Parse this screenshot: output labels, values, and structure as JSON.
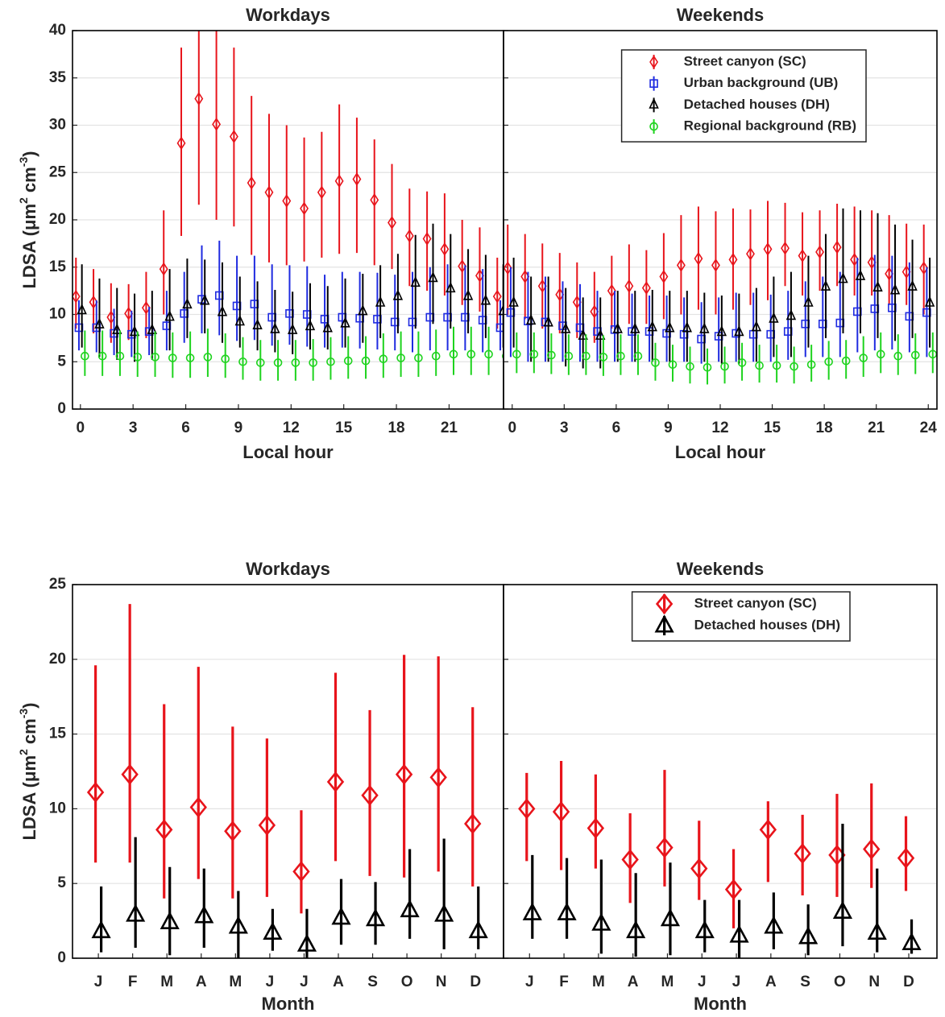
{
  "chart_data": [
    {
      "type": "errorbar",
      "title": "Workdays",
      "x_label": "Local hour",
      "y_label": [
        "LDSA (μm",
        "2",
        " cm",
        "-3",
        ")"
      ],
      "x": [
        0,
        1,
        2,
        3,
        4,
        5,
        6,
        7,
        8,
        9,
        10,
        11,
        12,
        13,
        14,
        15,
        16,
        17,
        18,
        19,
        20,
        21,
        22,
        23,
        24
      ],
      "xlim": [
        -0.45,
        24.1
      ],
      "xticks": [
        0,
        3,
        6,
        9,
        12,
        15,
        18,
        21
      ],
      "ylim": [
        0,
        40
      ],
      "yticks": [
        0,
        5,
        10,
        15,
        20,
        25,
        30,
        35,
        40
      ],
      "grid": true,
      "marker_size": "small",
      "series": [
        {
          "color": "#e8141b",
          "marker": "diamond",
          "values": [
            11.9,
            11.3,
            9.7,
            10.1,
            10.7,
            14.8,
            28.1,
            32.8,
            30.1,
            28.8,
            23.9,
            22.9,
            22.0,
            21.2,
            22.9,
            24.1,
            24.3,
            22.1,
            19.7,
            18.3,
            18.0,
            16.9,
            15.1,
            14.1,
            11.9
          ],
          "lower": [
            8.5,
            8,
            7,
            7.3,
            7.5,
            10,
            18.3,
            21.6,
            20,
            19.3,
            16.3,
            15.5,
            15.2,
            15.6,
            16,
            16.4,
            16.5,
            15.2,
            14.8,
            13,
            12.5,
            12,
            11,
            10.3,
            8.5
          ],
          "upper": [
            16,
            14.8,
            13.3,
            13.2,
            14.5,
            21,
            38.2,
            42,
            41,
            38.2,
            33.1,
            31.2,
            30,
            28.7,
            29.3,
            32.2,
            30.8,
            28.5,
            25.9,
            23.3,
            23,
            22.8,
            20,
            19.2,
            16
          ]
        },
        {
          "color": "#1f2be0",
          "marker": "square",
          "values": [
            8.6,
            8.6,
            8.0,
            7.9,
            8.2,
            8.8,
            10.1,
            11.6,
            12.0,
            10.9,
            11.1,
            9.7,
            10.1,
            10.0,
            9.5,
            9.7,
            9.6,
            9.5,
            9.2,
            9.2,
            9.7,
            9.7,
            9.7,
            9.4,
            8.6
          ],
          "lower": [
            6.2,
            6,
            5.7,
            5.5,
            5.7,
            6.2,
            7,
            8,
            7.8,
            7.2,
            7.3,
            6.7,
            6.8,
            6.6,
            6.5,
            6.5,
            6.4,
            6.3,
            6.2,
            6,
            6.2,
            6.2,
            6.2,
            6,
            6.2
          ],
          "upper": [
            11.5,
            11.5,
            10.6,
            10.4,
            10.8,
            12.5,
            14.5,
            17.3,
            17.8,
            16.2,
            16.2,
            15.3,
            15.2,
            15.1,
            14.2,
            14.5,
            14.5,
            14.4,
            14.2,
            14.5,
            15,
            15.3,
            15.2,
            14.8,
            11.5
          ]
        },
        {
          "color": "#000000",
          "marker": "triangle",
          "values": [
            10.4,
            8.9,
            8.3,
            8.1,
            8.3,
            9.7,
            11.0,
            11.4,
            10.2,
            9.2,
            8.8,
            8.4,
            8.3,
            8.7,
            8.5,
            9.0,
            10.3,
            11.2,
            11.9,
            13.3,
            13.8,
            12.7,
            11.9,
            11.4,
            10.3
          ],
          "lower": [
            6.5,
            5.5,
            5.2,
            5,
            5.2,
            6.2,
            7.5,
            8,
            7,
            6.5,
            6.2,
            6,
            5.8,
            6.3,
            6.3,
            6.5,
            7,
            7.5,
            8,
            8.5,
            9,
            8.5,
            8,
            7.5,
            6.5
          ],
          "upper": [
            15.3,
            13.8,
            12.8,
            12.2,
            12.5,
            14.8,
            15.9,
            15.8,
            15.5,
            14,
            13.5,
            12.6,
            12.4,
            13.3,
            13,
            13.8,
            14.3,
            15.2,
            16.4,
            18.4,
            19.6,
            18.5,
            16.9,
            16.3,
            15.3
          ]
        },
        {
          "color": "#1ed31e",
          "marker": "circle",
          "values": [
            5.6,
            5.6,
            5.6,
            5.5,
            5.5,
            5.4,
            5.4,
            5.5,
            5.3,
            5.0,
            4.9,
            4.9,
            4.9,
            4.9,
            5.0,
            5.1,
            5.1,
            5.3,
            5.4,
            5.4,
            5.6,
            5.8,
            5.8,
            5.8,
            5.6
          ],
          "lower": [
            3.5,
            3.5,
            3.5,
            3.4,
            3.4,
            3.3,
            3.3,
            3.4,
            3.3,
            3.1,
            3,
            3,
            3,
            3,
            3.1,
            3.2,
            3.2,
            3.3,
            3.4,
            3.4,
            3.5,
            3.6,
            3.6,
            3.6,
            3.5
          ],
          "upper": [
            8.3,
            8.3,
            8.3,
            8.2,
            8.2,
            8.1,
            8.2,
            8.5,
            8,
            7.6,
            7.3,
            7.3,
            7.3,
            7.4,
            7.6,
            7.7,
            7.7,
            8,
            8.2,
            8.2,
            8.4,
            8.7,
            8.7,
            8.7,
            8.3
          ]
        }
      ]
    },
    {
      "type": "errorbar",
      "title": "Weekends",
      "x_label": "Local hour",
      "x": [
        0,
        1,
        2,
        3,
        4,
        5,
        6,
        7,
        8,
        9,
        10,
        11,
        12,
        13,
        14,
        15,
        16,
        17,
        18,
        19,
        20,
        21,
        22,
        23,
        24
      ],
      "xlim": [
        -0.5,
        24.5
      ],
      "xticks": [
        0,
        3,
        6,
        9,
        12,
        15,
        18,
        21,
        24
      ],
      "ylim": [
        0,
        40
      ],
      "yticks": [
        0,
        5,
        10,
        15,
        20,
        25,
        30,
        35,
        40
      ],
      "ytick_labels": false,
      "grid": true,
      "legend": "upper right",
      "marker_size": "small",
      "series": [
        {
          "name": "Street canyon (SC)",
          "color": "#e8141b",
          "marker": "diamond",
          "values": [
            14.9,
            14.0,
            13.0,
            12.1,
            11.3,
            10.3,
            12.5,
            13.0,
            12.8,
            14.0,
            15.2,
            15.9,
            15.2,
            15.8,
            16.4,
            16.9,
            17.0,
            16.2,
            16.6,
            17.1,
            15.8,
            15.5,
            14.3,
            14.5,
            14.9
          ],
          "lower": [
            10,
            9.5,
            8.5,
            8,
            7.5,
            7,
            8.5,
            9,
            9,
            9.5,
            10,
            10.5,
            10,
            10.5,
            11,
            11.5,
            13,
            12,
            12.5,
            13,
            12,
            12,
            11,
            11,
            10
          ],
          "upper": [
            19.5,
            18.5,
            17.5,
            16.5,
            15.5,
            14.5,
            16.2,
            17.4,
            16.8,
            18.6,
            20.5,
            21.4,
            20.9,
            21.2,
            21.1,
            22,
            21.8,
            20.8,
            21,
            21.7,
            21.4,
            21,
            20.5,
            19.6,
            19.5
          ]
        },
        {
          "name": "Urban background (UB)",
          "color": "#1f2be0",
          "marker": "square",
          "values": [
            10.2,
            9.3,
            9.2,
            8.8,
            8.6,
            8.2,
            8.4,
            8.2,
            8.2,
            8.0,
            7.9,
            7.4,
            7.7,
            8.0,
            7.9,
            7.9,
            8.2,
            9.0,
            9.0,
            9.1,
            10.3,
            10.6,
            10.7,
            9.8,
            10.2
          ],
          "lower": [
            5.5,
            5,
            5,
            5,
            5,
            5,
            5,
            5,
            5,
            5,
            5,
            4.8,
            5,
            5,
            5,
            5,
            5.2,
            5.5,
            5.5,
            5.5,
            6,
            6.2,
            6.3,
            6,
            5.5
          ],
          "upper": [
            15,
            14.5,
            14,
            13.5,
            13.2,
            12.5,
            12.5,
            12.2,
            12,
            12,
            11.8,
            11.3,
            11.8,
            12.3,
            12.3,
            12.1,
            12.5,
            13.5,
            14,
            14.5,
            16,
            16.3,
            16.2,
            15.5,
            15
          ]
        },
        {
          "name": "Detached houses (DH)",
          "color": "#000000",
          "marker": "triangle",
          "values": [
            11.2,
            9.3,
            9.1,
            8.4,
            7.7,
            7.7,
            8.4,
            8.4,
            8.6,
            8.5,
            8.5,
            8.4,
            8.1,
            8.1,
            8.6,
            9.5,
            9.8,
            11.2,
            12.9,
            13.7,
            14.0,
            12.8,
            12.5,
            12.9,
            11.2
          ],
          "lower": [
            6.5,
            5,
            5,
            4.5,
            4.3,
            4.3,
            5,
            5,
            5,
            5,
            5,
            5,
            4.8,
            4.8,
            5,
            5.5,
            5.5,
            6.5,
            7.5,
            8,
            8,
            7.5,
            7.2,
            7.5,
            6.5
          ],
          "upper": [
            16,
            14,
            14,
            12.8,
            11.8,
            11.8,
            12.5,
            12.5,
            12.6,
            12.5,
            12.5,
            12.3,
            12,
            12.2,
            12.8,
            14,
            14.5,
            16.2,
            18.5,
            21.2,
            21,
            20.7,
            19.5,
            17.9,
            16
          ]
        },
        {
          "name": "Regional background (RB)",
          "color": "#1ed31e",
          "marker": "circle",
          "values": [
            5.8,
            5.8,
            5.7,
            5.6,
            5.6,
            5.5,
            5.6,
            5.6,
            4.9,
            4.7,
            4.5,
            4.4,
            4.5,
            4.9,
            4.6,
            4.6,
            4.5,
            4.7,
            5.0,
            5.1,
            5.4,
            5.8,
            5.6,
            5.7,
            5.8
          ],
          "lower": [
            3.8,
            3.8,
            3.7,
            3.6,
            3.6,
            3.5,
            3.6,
            3.6,
            3,
            2.9,
            2.7,
            2.6,
            2.7,
            3,
            2.8,
            2.8,
            2.7,
            2.9,
            3.1,
            3.2,
            3.4,
            3.8,
            3.6,
            3.7,
            3.8
          ],
          "upper": [
            8.1,
            8.1,
            8,
            7.9,
            7.9,
            7.8,
            7.9,
            7.9,
            7,
            6.8,
            6.6,
            6.4,
            6.6,
            7,
            6.8,
            6.8,
            6.6,
            6.8,
            7.2,
            7.3,
            7.7,
            8.1,
            7.9,
            8,
            8.1
          ]
        }
      ]
    },
    {
      "type": "errorbar",
      "title": "Workdays",
      "x_label": "Month",
      "y_label": [
        "LDSA (μm",
        "2",
        " cm",
        "-3",
        ")"
      ],
      "categories": [
        "J",
        "F",
        "M",
        "A",
        "M",
        "J",
        "J",
        "A",
        "S",
        "O",
        "N",
        "D"
      ],
      "ylim": [
        0,
        25
      ],
      "yticks": [
        0,
        5,
        10,
        15,
        20,
        25
      ],
      "grid": true,
      "marker_size": "large",
      "series": [
        {
          "color": "#e8141b",
          "marker": "diamond",
          "values": [
            11.1,
            12.3,
            8.6,
            10.1,
            8.5,
            8.9,
            5.8,
            11.8,
            10.9,
            12.3,
            12.1,
            9.0
          ],
          "lower": [
            6.4,
            6.4,
            4,
            5.3,
            4,
            4.1,
            3,
            6.5,
            5.5,
            5.4,
            5.8,
            4.8
          ],
          "upper": [
            19.6,
            23.7,
            17,
            19.5,
            15.5,
            14.7,
            9.9,
            19.1,
            16.6,
            20.3,
            20.2,
            16.8
          ]
        },
        {
          "color": "#000000",
          "marker": "triangle",
          "values": [
            1.8,
            2.9,
            2.4,
            2.8,
            2.1,
            1.7,
            0.9,
            2.7,
            2.6,
            3.2,
            2.9,
            1.8
          ],
          "lower": [
            0.4,
            0.7,
            0.2,
            0.7,
            0,
            0.5,
            0,
            0.9,
            0.9,
            1.3,
            0.6,
            0.6
          ],
          "upper": [
            4.8,
            8.1,
            6.1,
            6,
            4.5,
            3.3,
            3.3,
            5.3,
            5.1,
            7.3,
            8,
            4.8
          ]
        }
      ]
    },
    {
      "type": "errorbar",
      "title": "Weekends",
      "x_label": "Month",
      "categories": [
        "J",
        "F",
        "M",
        "A",
        "M",
        "J",
        "J",
        "A",
        "S",
        "O",
        "N",
        "D"
      ],
      "ylim": [
        0,
        25
      ],
      "yticks": [
        0,
        5,
        10,
        15,
        20,
        25
      ],
      "ytick_labels": false,
      "grid": true,
      "legend": "upper right",
      "marker_size": "large",
      "series": [
        {
          "name": "Street canyon (SC)",
          "color": "#e8141b",
          "marker": "diamond",
          "values": [
            10.0,
            9.8,
            8.7,
            6.6,
            7.4,
            6.0,
            4.6,
            8.6,
            7.0,
            6.9,
            7.3,
            6.7
          ],
          "lower": [
            6.5,
            5.9,
            6,
            3.7,
            4.8,
            3.9,
            2,
            5.1,
            4.2,
            4.1,
            4.7,
            4.5
          ],
          "upper": [
            12.4,
            13.2,
            12.3,
            9.7,
            12.6,
            9.2,
            7.3,
            10.5,
            9.6,
            11,
            11.7,
            9.5
          ]
        },
        {
          "name": "Detached houses (DH)",
          "color": "#000000",
          "marker": "triangle",
          "values": [
            3.0,
            3.0,
            2.3,
            1.8,
            2.6,
            1.8,
            1.5,
            2.1,
            1.4,
            3.1,
            1.7,
            1.0
          ],
          "lower": [
            1.3,
            1.3,
            0.3,
            0.1,
            0.2,
            0.4,
            0,
            0.6,
            0.2,
            0.8,
            0.4,
            0.3
          ],
          "upper": [
            6.9,
            6.7,
            6.6,
            5.7,
            6.4,
            3.9,
            3.9,
            4.4,
            3.6,
            9,
            6,
            2.6
          ]
        }
      ]
    }
  ]
}
